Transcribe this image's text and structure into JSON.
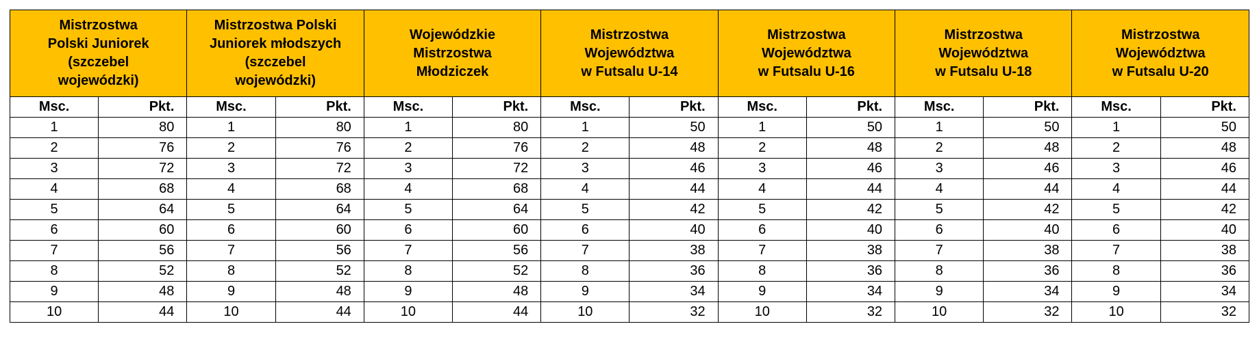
{
  "competitions": [
    {
      "title": "Mistrzostwa Polski Juniorek (szczebel wojewódzki)",
      "lines": [
        "Mistrzostwa",
        "Polski Juniorek",
        "(szczebel",
        "wojewódzki)"
      ]
    },
    {
      "title": "Mistrzostwa Polski Juniorek młodszych (szczebel wojewódzki)",
      "lines": [
        "Mistrzostwa Polski",
        "Juniorek młodszych",
        "(szczebel",
        "wojewódzki)"
      ]
    },
    {
      "title": "Wojewódzkie Mistrzostwa Młodziczek",
      "lines": [
        "Wojewódzkie",
        "Mistrzostwa",
        "Młodziczek"
      ]
    },
    {
      "title": "Mistrzostwa Województwa w Futsalu U-14",
      "lines": [
        "Mistrzostwa",
        "Województwa",
        "w Futsalu U-14"
      ]
    },
    {
      "title": "Mistrzostwa Województwa w Futsalu U-16",
      "lines": [
        "Mistrzostwa",
        "Województwa",
        "w Futsalu U-16"
      ]
    },
    {
      "title": "Mistrzostwa Województwa w Futsalu U-18",
      "lines": [
        "Mistrzostwa",
        "Województwa",
        "w Futsalu U-18"
      ]
    },
    {
      "title": "Mistrzostwa Województwa w Futsalu U-20",
      "lines": [
        "Mistrzostwa",
        "Województwa",
        "w Futsalu U-20"
      ]
    }
  ],
  "subheaders": {
    "place": "Msc.",
    "points": "Pkt."
  },
  "places": [
    "1",
    "2",
    "3",
    "4",
    "5",
    "6",
    "7",
    "8",
    "9",
    "10"
  ],
  "points": [
    [
      "80",
      "76",
      "72",
      "68",
      "64",
      "60",
      "56",
      "52",
      "48",
      "44"
    ],
    [
      "80",
      "76",
      "72",
      "68",
      "64",
      "60",
      "56",
      "52",
      "48",
      "44"
    ],
    [
      "80",
      "76",
      "72",
      "68",
      "64",
      "60",
      "56",
      "52",
      "48",
      "44"
    ],
    [
      "50",
      "48",
      "46",
      "44",
      "42",
      "40",
      "38",
      "36",
      "34",
      "32"
    ],
    [
      "50",
      "48",
      "46",
      "44",
      "42",
      "40",
      "38",
      "36",
      "34",
      "32"
    ],
    [
      "50",
      "48",
      "46",
      "44",
      "42",
      "40",
      "38",
      "36",
      "34",
      "32"
    ],
    [
      "50",
      "48",
      "46",
      "44",
      "42",
      "40",
      "38",
      "36",
      "34",
      "32"
    ]
  ],
  "colors": {
    "header_bg": "#ffc000",
    "border": "#000000",
    "text": "#000000"
  }
}
